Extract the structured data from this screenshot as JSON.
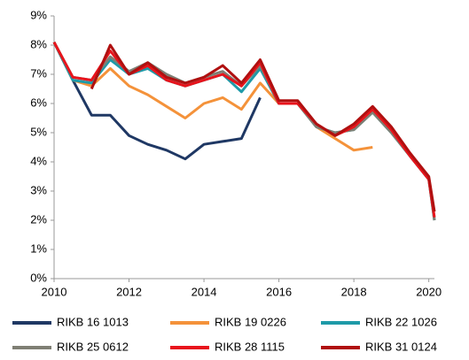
{
  "chart_data": {
    "type": "line",
    "x": [
      2010,
      2010.5,
      2011,
      2011.5,
      2012,
      2012.5,
      2013,
      2013.5,
      2014,
      2014.5,
      2015,
      2015.5,
      2016,
      2016.5,
      2017,
      2017.5,
      2018,
      2018.5,
      2019,
      2019.5,
      2020,
      2020.15
    ],
    "series": [
      {
        "name": "RIKB 16 1013",
        "color": "#1f3864",
        "values": [
          8.1,
          6.8,
          5.6,
          5.6,
          4.9,
          4.6,
          4.4,
          4.1,
          4.6,
          4.7,
          4.8,
          6.2,
          null,
          null,
          null,
          null,
          null,
          null,
          null,
          null,
          null,
          null
        ]
      },
      {
        "name": "RIKB 19 0226",
        "color": "#f4923a",
        "values": [
          8.1,
          6.8,
          6.6,
          7.2,
          6.6,
          6.3,
          5.9,
          5.5,
          6.0,
          6.2,
          5.8,
          6.7,
          6.0,
          6.0,
          5.2,
          4.8,
          4.4,
          4.5,
          null,
          null,
          null,
          null
        ]
      },
      {
        "name": "RIKB 22 1026",
        "color": "#1e9aa8",
        "values": [
          8.1,
          6.8,
          6.7,
          7.5,
          7.0,
          7.2,
          6.8,
          6.6,
          6.8,
          7.0,
          6.4,
          7.2,
          6.0,
          6.0,
          5.2,
          5.0,
          5.1,
          5.7,
          5.0,
          4.2,
          3.4,
          2.0
        ]
      },
      {
        "name": "RIKB 25 0612",
        "color": "#7f7f74",
        "values": [
          8.1,
          6.9,
          6.8,
          7.6,
          7.1,
          7.4,
          7.0,
          6.7,
          6.9,
          7.1,
          6.6,
          7.3,
          6.0,
          6.0,
          5.2,
          5.0,
          5.1,
          5.7,
          5.0,
          4.2,
          3.4,
          2.0
        ]
      },
      {
        "name": "RIKB 28 1115",
        "color": "#e8141c",
        "values": [
          8.1,
          6.9,
          6.8,
          7.8,
          7.0,
          7.3,
          6.8,
          6.6,
          6.8,
          7.0,
          6.6,
          7.4,
          6.0,
          6.0,
          5.3,
          4.9,
          5.2,
          5.8,
          5.1,
          4.2,
          3.4,
          2.1
        ]
      },
      {
        "name": "RIKB 31 0124",
        "color": "#b01010",
        "values": [
          null,
          null,
          6.5,
          8.0,
          7.0,
          7.4,
          6.9,
          6.7,
          6.9,
          7.3,
          6.7,
          7.5,
          6.1,
          6.1,
          5.3,
          4.9,
          5.3,
          5.9,
          5.2,
          4.3,
          3.5,
          2.3
        ]
      }
    ],
    "xlim": [
      2010,
      2020.15
    ],
    "xticks": [
      2010,
      2012,
      2014,
      2016,
      2018,
      2020
    ],
    "ylim": [
      0,
      9
    ],
    "yticks": [
      {
        "value": 0,
        "label": "0%"
      },
      {
        "value": 1,
        "label": "1%"
      },
      {
        "value": 2,
        "label": "2%"
      },
      {
        "value": 3,
        "label": "3%"
      },
      {
        "value": 4,
        "label": "4%"
      },
      {
        "value": 5,
        "label": "5%"
      },
      {
        "value": 6,
        "label": "6%"
      },
      {
        "value": 7,
        "label": "7%"
      },
      {
        "value": 8,
        "label": "8%"
      },
      {
        "value": 9,
        "label": "9%"
      }
    ],
    "legend": "bottom",
    "grid": false
  }
}
